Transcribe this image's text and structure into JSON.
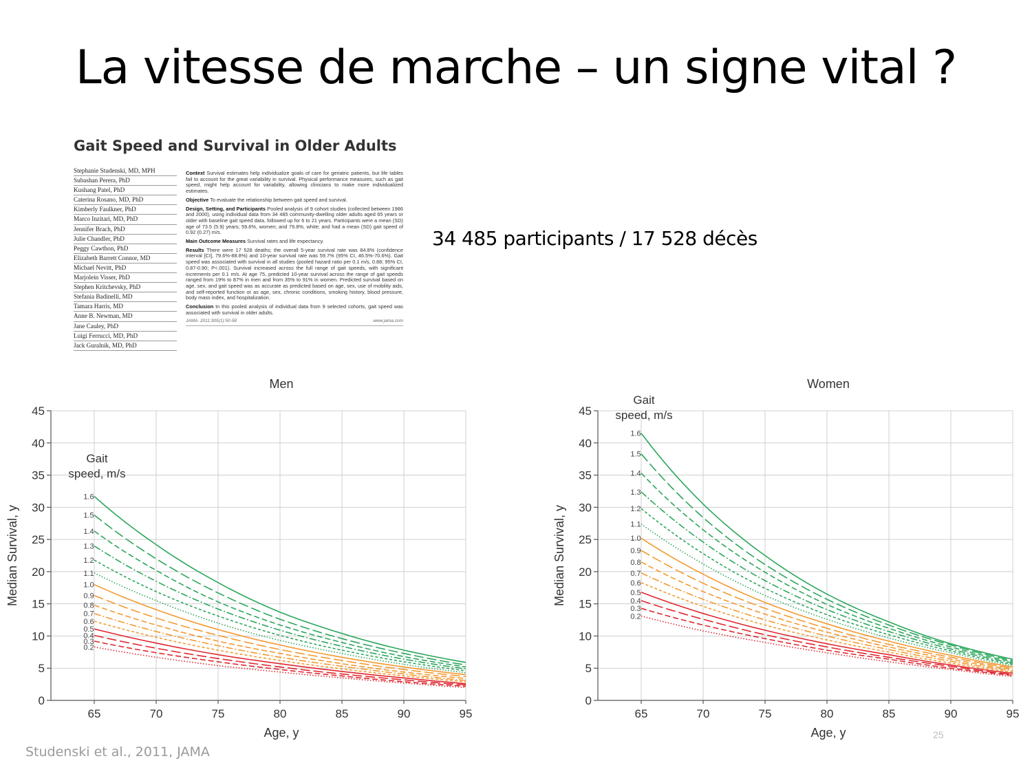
{
  "slide": {
    "title": "La vitesse de marche – un signe vital ?",
    "participants_text": "34 485 participants / 17 528 décès",
    "source_text": "Studenski et al., 2011, JAMA",
    "page_number": "25"
  },
  "article": {
    "heading": "Gait Speed and Survival in Older Adults",
    "authors": [
      "Stephanie Studenski, MD, MPH",
      "Subashan Perera, PhD",
      "Kushang Patel, PhD",
      "Caterina Rosano, MD, PhD",
      "Kimberly Faulkner, PhD",
      "Marco Inzitari, MD, PhD",
      "Jennifer Brach, PhD",
      "Julie Chandler, PhD",
      "Peggy Cawthon, PhD",
      "Elizabeth Barrett Connor, MD",
      "Michael Nevitt, PhD",
      "Marjolein Visser, PhD",
      "Stephen Kritchevsky, PhD",
      "Stefania Badinelli, MD",
      "Tamara Harris, MD",
      "Anne B. Newman, MD",
      "Jane Cauley, PhD",
      "Luigi Ferrucci, MD, PhD",
      "Jack Guralnik, MD, PhD"
    ],
    "sections": [
      {
        "label": "Context",
        "text": "Survival estimates help individualize goals of care for geriatric patients, but life tables fail to account for the great variability in survival. Physical performance measures, such as gait speed, might help account for variability, allowing clinicians to make more individualized estimates."
      },
      {
        "label": "Objective",
        "text": "To evaluate the relationship between gait speed and survival."
      },
      {
        "label": "Design, Setting, and Participants",
        "text": "Pooled analysis of 9 cohort studies (collected between 1986 and 2000), using individual data from 34 485 community-dwelling older adults aged 65 years or older with baseline gait speed data, followed up for 6 to 21 years. Participants were a mean (SD) age of 73.5 (5.9) years; 59.6%, women; and 79.8%, white; and had a mean (SD) gait speed of 0.92 (0.27) m/s."
      },
      {
        "label": "Main Outcome Measures",
        "text": "Survival rates and life expectancy."
      },
      {
        "label": "Results",
        "text": "There were 17 528 deaths; the overall 5-year survival rate was 84.8% (confidence interval [CI], 79.6%-88.8%) and 10-year survival rate was 59.7% (95% CI, 46.5%-70.6%). Gait speed was associated with survival in all studies (pooled hazard ratio per 0.1 m/s, 0.88; 95% CI, 0.87-0.90; P<.001). Survival increased across the full range of gait speeds, with significant increments per 0.1 m/s. At age 75, predicted 10-year survival across the range of gait speeds ranged from 19% to 87% in men and from 35% to 91% in women. Predicted survival based on age, sex, and gait speed was as accurate as predicted based on age, sex, use of mobility aids, and self-reported function or as age, sex, chronic conditions, smoking history, blood pressure, body mass index, and hospitalization."
      },
      {
        "label": "Conclusion",
        "text": "In this pooled analysis of individual data from 9 selected cohorts, gait speed was associated with survival in older adults."
      }
    ],
    "citation": "JAMA. 2011;305(1):50-58",
    "website": "www.jama.com"
  },
  "colors": {
    "green": "#2aa65a",
    "orange": "#f3992f",
    "red": "#e0272f",
    "grid": "#cfcfcf",
    "axis": "#555555"
  },
  "chart_data": [
    {
      "type": "line",
      "title": "Men",
      "xlabel": "Age, y",
      "ylabel": "Median Survival, y",
      "legend_title": [
        "Gait",
        "speed, m/s"
      ],
      "xlim": [
        61.5,
        95
      ],
      "ylim": [
        0,
        45
      ],
      "x_ticks": [
        65,
        70,
        75,
        80,
        85,
        90,
        95
      ],
      "y_ticks": [
        0,
        5,
        10,
        15,
        20,
        25,
        30,
        35,
        40,
        45
      ],
      "x": [
        65,
        70,
        75,
        80,
        85,
        90,
        95
      ],
      "series": [
        {
          "name": "1.6",
          "color": "green",
          "dash": "solid",
          "values": [
            31.7,
            24.2,
            18.3,
            13.7,
            10.4,
            7.8,
            5.9
          ]
        },
        {
          "name": "1.5",
          "color": "green",
          "dash": "long",
          "values": [
            28.8,
            22.0,
            16.7,
            12.6,
            9.6,
            7.3,
            5.5
          ]
        },
        {
          "name": "1.4",
          "color": "green",
          "dash": "medium",
          "values": [
            26.3,
            20.2,
            15.3,
            11.7,
            9.0,
            6.8,
            5.2
          ]
        },
        {
          "name": "1.3",
          "color": "green",
          "dash": "dashdot",
          "values": [
            24.0,
            18.5,
            14.2,
            10.9,
            8.4,
            6.4,
            4.9
          ]
        },
        {
          "name": "1.2",
          "color": "green",
          "dash": "short",
          "values": [
            21.8,
            16.9,
            13.1,
            10.1,
            7.8,
            6.0,
            4.6
          ]
        },
        {
          "name": "1.1",
          "color": "green",
          "dash": "dot",
          "values": [
            19.8,
            15.5,
            12.0,
            9.3,
            7.3,
            5.6,
            4.3
          ]
        },
        {
          "name": "1.0",
          "color": "orange",
          "dash": "solid",
          "values": [
            18.0,
            14.1,
            11.0,
            8.6,
            6.7,
            5.2,
            4.0
          ]
        },
        {
          "name": "0.9",
          "color": "orange",
          "dash": "long",
          "values": [
            16.3,
            12.8,
            10.1,
            7.9,
            6.2,
            4.8,
            3.7
          ]
        },
        {
          "name": "0.8",
          "color": "orange",
          "dash": "medium",
          "values": [
            14.8,
            11.7,
            9.2,
            7.3,
            5.7,
            4.4,
            3.4
          ]
        },
        {
          "name": "0.7",
          "color": "orange",
          "dash": "dashdot",
          "values": [
            13.5,
            10.7,
            8.5,
            6.7,
            5.3,
            4.1,
            3.1
          ]
        },
        {
          "name": "0.6",
          "color": "orange",
          "dash": "short",
          "values": [
            12.3,
            9.8,
            7.8,
            6.2,
            4.9,
            3.8,
            2.9
          ]
        },
        {
          "name": "0.5",
          "color": "red",
          "dash": "solid",
          "values": [
            11.1,
            8.9,
            7.1,
            5.7,
            4.5,
            3.5,
            2.6
          ]
        },
        {
          "name": "0.4",
          "color": "red",
          "dash": "long",
          "values": [
            10.1,
            8.1,
            6.5,
            5.2,
            4.1,
            3.2,
            2.4
          ]
        },
        {
          "name": "0.3",
          "color": "red",
          "dash": "medium",
          "values": [
            9.2,
            7.4,
            6.0,
            4.8,
            3.8,
            2.9,
            2.2
          ]
        },
        {
          "name": "0.2",
          "color": "red",
          "dash": "dot",
          "values": [
            8.3,
            6.7,
            5.4,
            4.4,
            3.5,
            2.7,
            2.0
          ]
        }
      ]
    },
    {
      "type": "line",
      "title": "Women",
      "xlabel": "Age, y",
      "ylabel": "Median Survival, y",
      "legend_title": [
        "Gait",
        "speed, m/s"
      ],
      "xlim": [
        61.5,
        95
      ],
      "ylim": [
        0,
        45
      ],
      "x_ticks": [
        65,
        70,
        75,
        80,
        85,
        90,
        95
      ],
      "y_ticks": [
        0,
        5,
        10,
        15,
        20,
        25,
        30,
        35,
        40,
        45
      ],
      "x": [
        65,
        70,
        75,
        80,
        85,
        90,
        95
      ],
      "series": [
        {
          "name": "1.6",
          "color": "green",
          "dash": "solid",
          "values": [
            41.5,
            30.5,
            22.5,
            16.5,
            12.2,
            8.8,
            6.4
          ]
        },
        {
          "name": "1.5",
          "color": "green",
          "dash": "long",
          "values": [
            38.3,
            28.4,
            21.1,
            15.7,
            11.7,
            8.6,
            6.2
          ]
        },
        {
          "name": "1.4",
          "color": "green",
          "dash": "medium",
          "values": [
            35.3,
            26.5,
            19.9,
            14.9,
            11.2,
            8.3,
            6.0
          ]
        },
        {
          "name": "1.3",
          "color": "green",
          "dash": "dashdot",
          "values": [
            32.4,
            24.6,
            18.6,
            14.1,
            10.7,
            8.0,
            5.8
          ]
        },
        {
          "name": "1.2",
          "color": "green",
          "dash": "short",
          "values": [
            29.8,
            22.8,
            17.4,
            13.3,
            10.2,
            7.7,
            5.6
          ]
        },
        {
          "name": "1.1",
          "color": "green",
          "dash": "dot",
          "values": [
            27.4,
            21.2,
            16.3,
            12.6,
            9.7,
            7.4,
            5.4
          ]
        },
        {
          "name": "1.0",
          "color": "orange",
          "dash": "solid",
          "values": [
            25.2,
            19.6,
            15.2,
            11.9,
            9.2,
            7.0,
            5.2
          ]
        },
        {
          "name": "0.9",
          "color": "orange",
          "dash": "long",
          "values": [
            23.3,
            18.2,
            14.3,
            11.2,
            8.7,
            6.7,
            5.0
          ]
        },
        {
          "name": "0.8",
          "color": "orange",
          "dash": "medium",
          "values": [
            21.5,
            16.9,
            13.4,
            10.6,
            8.3,
            6.4,
            4.8
          ]
        },
        {
          "name": "0.7",
          "color": "orange",
          "dash": "dashdot",
          "values": [
            19.8,
            15.7,
            12.5,
            10.0,
            7.9,
            6.1,
            4.6
          ]
        },
        {
          "name": "0.6",
          "color": "orange",
          "dash": "short",
          "values": [
            18.3,
            14.6,
            11.7,
            9.4,
            7.5,
            5.8,
            4.4
          ]
        },
        {
          "name": "0.5",
          "color": "red",
          "dash": "solid",
          "values": [
            16.8,
            13.5,
            10.9,
            8.8,
            7.1,
            5.5,
            4.2
          ]
        },
        {
          "name": "0.4",
          "color": "red",
          "dash": "long",
          "values": [
            15.5,
            12.6,
            10.2,
            8.3,
            6.7,
            5.3,
            4.0
          ]
        },
        {
          "name": "0.3",
          "color": "red",
          "dash": "medium",
          "values": [
            14.3,
            11.7,
            9.6,
            7.8,
            6.4,
            5.0,
            3.9
          ]
        },
        {
          "name": "0.2",
          "color": "red",
          "dash": "dot",
          "values": [
            13.1,
            10.8,
            9.0,
            7.4,
            6.0,
            4.8,
            3.7
          ]
        }
      ]
    }
  ]
}
